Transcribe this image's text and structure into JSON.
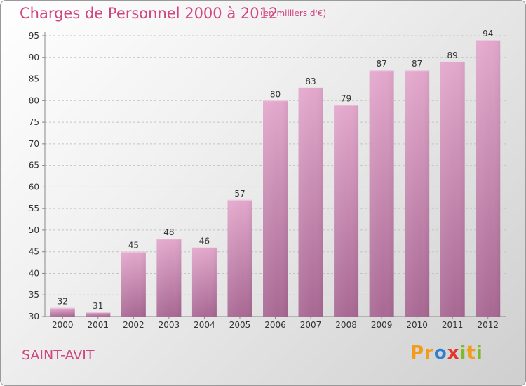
{
  "title": "Charges de Personnel 2000 à 2012",
  "subtitle": "(en milliers d'€)",
  "commune": "SAINT-AVIT",
  "logo": {
    "p1": "Pr",
    "p2": "o",
    "p3": "x",
    "p4": "i",
    "p5": "t",
    "p6": "i"
  },
  "colors": {
    "bar_top": "#e3a8cc",
    "bar_bottom": "#a86893",
    "text": "#d0457f"
  },
  "chart_data": {
    "type": "bar",
    "categories": [
      "2000",
      "2001",
      "2002",
      "2003",
      "2004",
      "2005",
      "2006",
      "2007",
      "2008",
      "2009",
      "2010",
      "2011",
      "2012"
    ],
    "values": [
      32,
      31,
      45,
      48,
      46,
      57,
      80,
      83,
      79,
      87,
      87,
      89,
      94
    ],
    "ylim": [
      30,
      95
    ],
    "yticks": [
      30,
      35,
      40,
      45,
      50,
      55,
      60,
      65,
      70,
      75,
      80,
      85,
      90,
      95
    ],
    "grid": "horizontal-dashed",
    "legend": "none"
  }
}
